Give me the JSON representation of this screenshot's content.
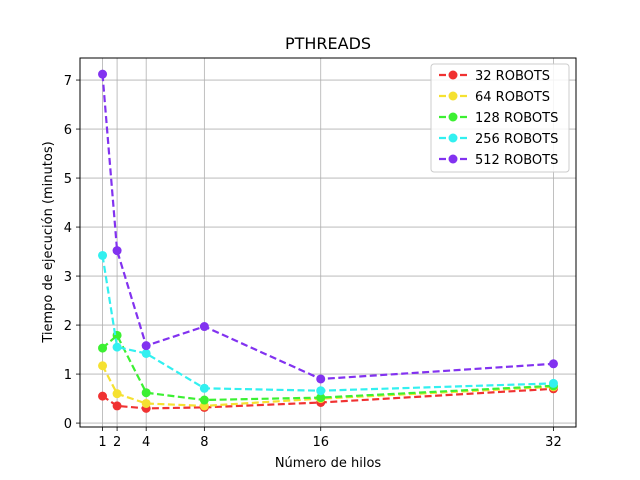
{
  "chart_data": {
    "type": "line",
    "title": "PTHREADS",
    "xlabel": "Número de hilos",
    "ylabel": "Tiempo de ejecución (minutos)",
    "x": [
      1,
      2,
      4,
      8,
      16,
      32
    ],
    "xticks": [
      1,
      2,
      4,
      8,
      16,
      32
    ],
    "yticks": [
      0,
      1,
      2,
      3,
      4,
      5,
      6,
      7
    ],
    "xlim": [
      -0.55,
      33.55
    ],
    "ylim": [
      -0.08,
      7.45
    ],
    "grid": true,
    "legend_position": "top-right",
    "line_style": "dashed",
    "marker": "circle",
    "series": [
      {
        "name": "32 ROBOTS",
        "color": "#f03232",
        "values": [
          0.55,
          0.35,
          0.3,
          0.32,
          0.42,
          0.7
        ]
      },
      {
        "name": "64 ROBOTS",
        "color": "#f5e131",
        "values": [
          1.17,
          0.6,
          0.4,
          0.35,
          0.5,
          0.74
        ]
      },
      {
        "name": "128 ROBOTS",
        "color": "#3cf032",
        "values": [
          1.53,
          1.79,
          0.62,
          0.47,
          0.52,
          0.76
        ]
      },
      {
        "name": "256 ROBOTS",
        "color": "#32f0f0",
        "values": [
          3.42,
          1.55,
          1.42,
          0.71,
          0.66,
          0.81
        ]
      },
      {
        "name": "512 ROBOTS",
        "color": "#8232f0",
        "values": [
          7.12,
          3.52,
          1.58,
          1.97,
          0.9,
          1.21
        ]
      }
    ]
  }
}
